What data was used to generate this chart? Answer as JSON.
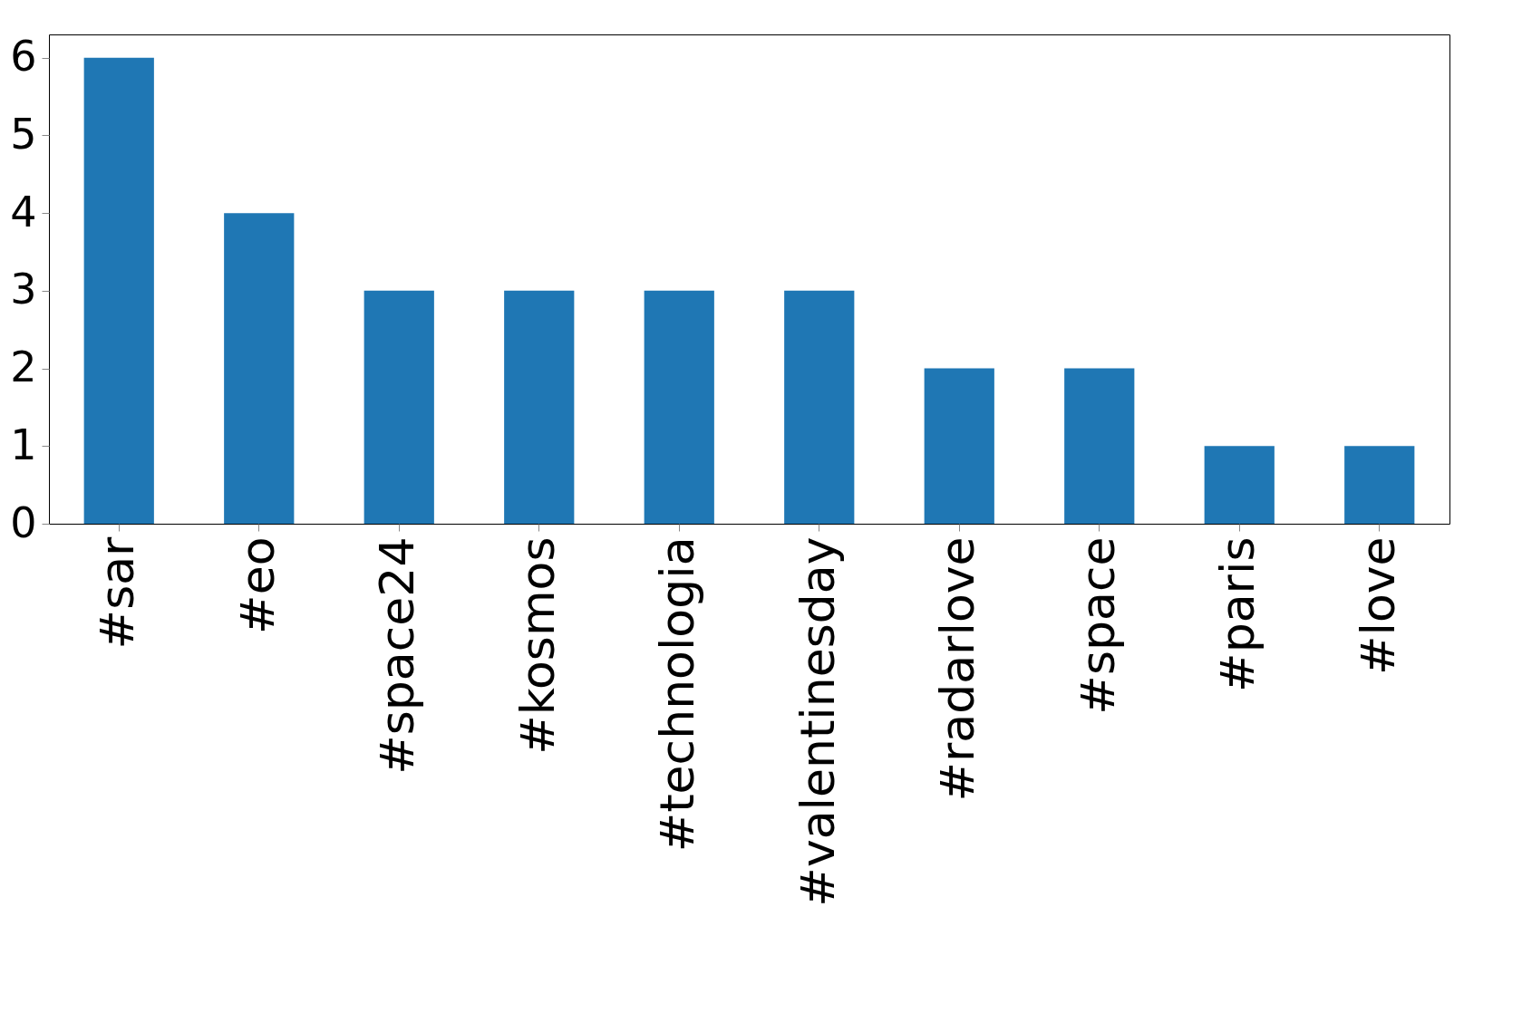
{
  "chart_data": {
    "type": "bar",
    "categories": [
      "#sar",
      "#eo",
      "#space24",
      "#kosmos",
      "#technologia",
      "#valentinesday",
      "#radarlove",
      "#space",
      "#paris",
      "#love"
    ],
    "values": [
      6,
      4,
      3,
      3,
      3,
      3,
      2,
      2,
      1,
      1
    ],
    "color": "#1f77b4",
    "ylim": [
      0,
      6.3
    ],
    "yticks": [
      0,
      1,
      2,
      3,
      4,
      5,
      6
    ],
    "grid": false
  }
}
